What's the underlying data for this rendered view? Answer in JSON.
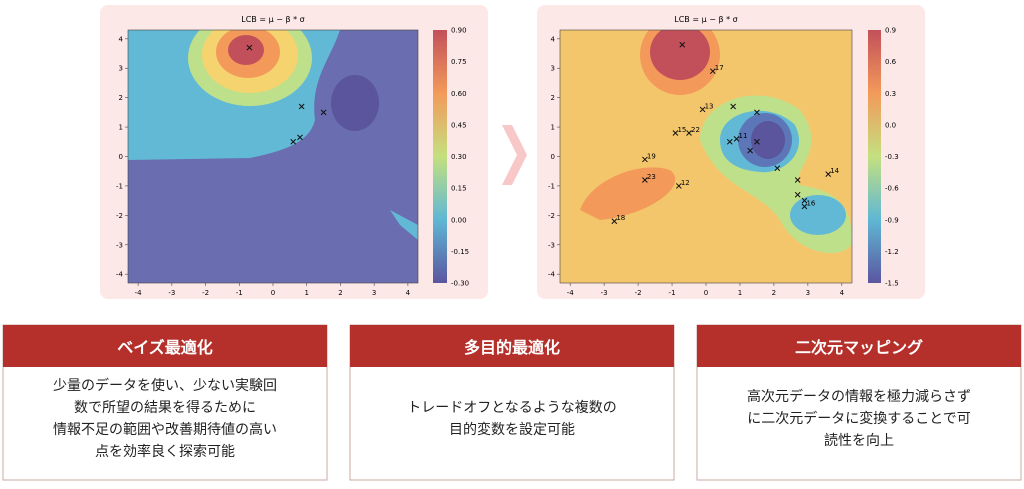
{
  "plots": [
    {
      "title": "LCB = μ − β * σ",
      "xticks": [
        "-4",
        "-3",
        "-2",
        "-1",
        "0",
        "1",
        "2",
        "3",
        "4"
      ],
      "yticks": [
        "4",
        "3",
        "2",
        "1",
        "0",
        "-1",
        "-2",
        "-3",
        "-4"
      ],
      "colorbar": [
        "0.90",
        "0.75",
        "0.60",
        "0.45",
        "0.30",
        "0.15",
        "0.00",
        "-0.15",
        "-0.30"
      ],
      "points": [
        [
          -0.7,
          3.7
        ],
        [
          0.85,
          1.7
        ],
        [
          1.5,
          1.5
        ],
        [
          0.6,
          0.5
        ],
        [
          0.8,
          0.65
        ]
      ],
      "labeled_points": []
    },
    {
      "title": "LCB = μ − β * σ",
      "xticks": [
        "-4",
        "-3",
        "-2",
        "-1",
        "0",
        "1",
        "2",
        "3",
        "4"
      ],
      "yticks": [
        "4",
        "3",
        "2",
        "1",
        "0",
        "-1",
        "-2",
        "-3",
        "-4"
      ],
      "colorbar": [
        "0.9",
        "0.6",
        "0.3",
        "0.0",
        "-0.3",
        "-0.6",
        "-0.9",
        "-1.2",
        "-1.5"
      ],
      "points": [
        [
          -0.7,
          3.8
        ],
        [
          0.8,
          1.7
        ],
        [
          1.5,
          1.5
        ],
        [
          1.5,
          0.5
        ],
        [
          1.3,
          0.2
        ],
        [
          2.1,
          -0.4
        ],
        [
          2.7,
          -0.8
        ],
        [
          2.7,
          -1.3
        ],
        [
          2.9,
          -1.5
        ],
        [
          0.7,
          0.5
        ]
      ],
      "labeled_points": [
        {
          "label": "17",
          "x": 0.2,
          "y": 2.9
        },
        {
          "label": "13",
          "x": -0.1,
          "y": 1.6
        },
        {
          "label": "15",
          "x": -0.9,
          "y": 0.8
        },
        {
          "label": "22",
          "x": -0.5,
          "y": 0.8
        },
        {
          "label": "11",
          "x": 0.9,
          "y": 0.6
        },
        {
          "label": "19",
          "x": -1.8,
          "y": -0.1
        },
        {
          "label": "23",
          "x": -1.8,
          "y": -0.8
        },
        {
          "label": "12",
          "x": -0.8,
          "y": -1.0
        },
        {
          "label": "18",
          "x": -2.7,
          "y": -2.2
        },
        {
          "label": "14",
          "x": 3.6,
          "y": -0.6
        },
        {
          "label": "16",
          "x": 2.9,
          "y": -1.7
        }
      ]
    }
  ],
  "cards": [
    {
      "title": "ベイズ最適化",
      "lines": [
        "少量のデータを使い、少ない実験回",
        "数で所望の結果を得るために",
        "情報不足の範囲や改善期待値の高い",
        "点を効率良く探索可能"
      ]
    },
    {
      "title": "多目的最適化",
      "lines": [
        "トレードオフとなるような複数の",
        "目的変数を設定可能"
      ]
    },
    {
      "title": "二次元マッピング",
      "lines": [
        "高次元データの情報を極力減らさず",
        "に二次元データに変換することで可",
        "読性を向上"
      ]
    }
  ]
}
